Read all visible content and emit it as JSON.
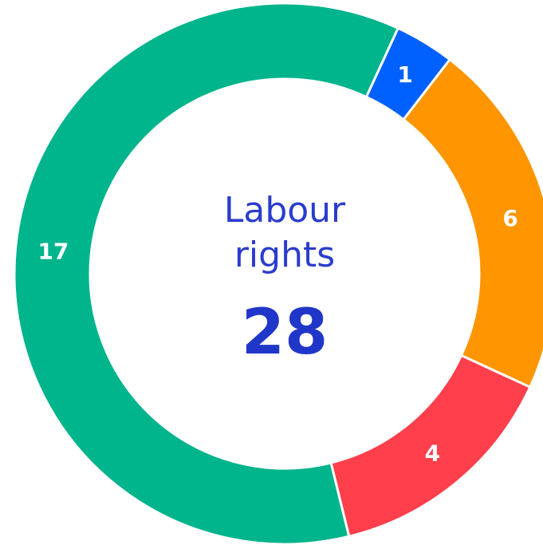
{
  "chart_data": {
    "type": "donut",
    "center_title": "Labour rights",
    "center_value": 28,
    "categories": [
      null,
      null,
      null,
      null
    ],
    "values": [
      1,
      6,
      4,
      17
    ],
    "colors": [
      "#0061fe",
      "#ff9500",
      "#ff3f4b",
      "#00b48c"
    ]
  }
}
